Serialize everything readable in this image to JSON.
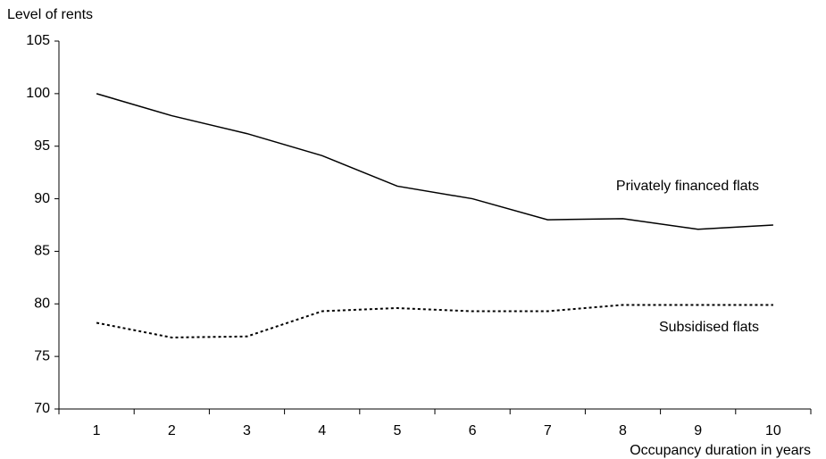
{
  "chart_data": {
    "type": "line",
    "y_label": "Level of rents",
    "x_label": "Occupancy duration in years",
    "categories": [
      "1",
      "2",
      "3",
      "4",
      "5",
      "6",
      "7",
      "8",
      "9",
      "10"
    ],
    "series": [
      {
        "name": "Privately financed flats",
        "color": "#000000",
        "dash": "solid",
        "values": [
          100,
          97.9,
          96.2,
          94.1,
          91.2,
          90.0,
          88.0,
          88.1,
          87.1,
          87.5
        ]
      },
      {
        "name": "Subsidised flats",
        "color": "#000000",
        "dash": "dotted",
        "values": [
          78.2,
          76.8,
          76.9,
          79.3,
          79.6,
          79.3,
          79.3,
          79.9,
          79.9,
          79.9
        ]
      }
    ],
    "ylim": [
      70,
      105
    ],
    "yticks": [
      70,
      75,
      80,
      85,
      90,
      95,
      100,
      105
    ],
    "grid": false
  }
}
